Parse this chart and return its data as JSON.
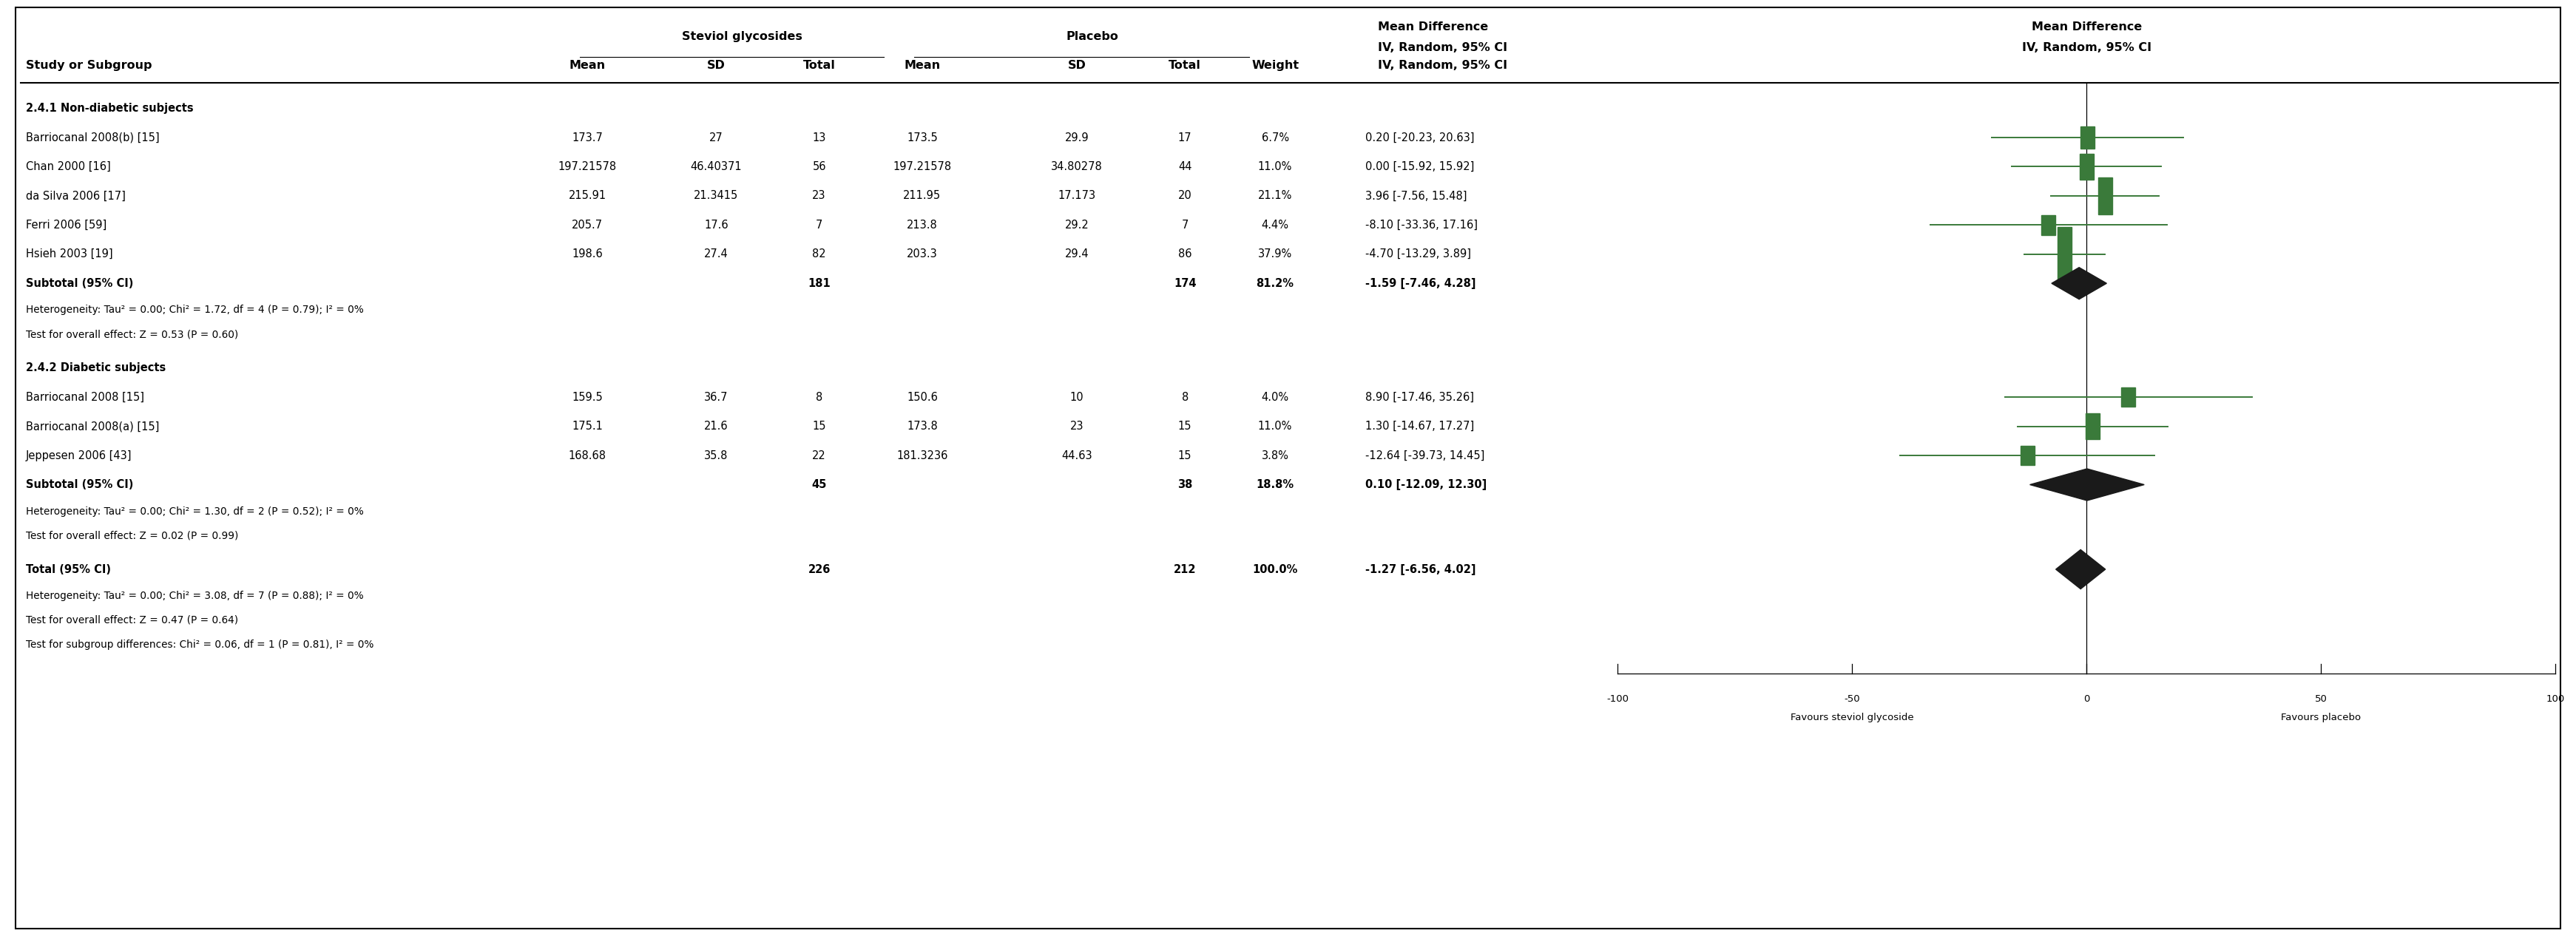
{
  "group1_header": "Steviol glycosides",
  "group2_header": "Placebo",
  "md_header": "Mean Difference",
  "md_subheader": "IV, Random, 95% CI",
  "subgroup1_label": "2.4.1 Non-diabetic subjects",
  "subgroup1_studies": [
    {
      "name": "Barriocanal 2008(b) [15]",
      "mean1": "173.7",
      "sd1": "27",
      "n1": "13",
      "mean2": "173.5",
      "sd2": "29.9",
      "n2": "17",
      "weight": "6.7%",
      "md": 0.2,
      "ci_lo": -20.23,
      "ci_hi": 20.63
    },
    {
      "name": "Chan 2000 [16]",
      "mean1": "197.21578",
      "sd1": "46.40371",
      "n1": "56",
      "mean2": "197.21578",
      "sd2": "34.80278",
      "n2": "44",
      "weight": "11.0%",
      "md": 0.0,
      "ci_lo": -15.92,
      "ci_hi": 15.92
    },
    {
      "name": "da Silva 2006 [17]",
      "mean1": "215.91",
      "sd1": "21.3415",
      "n1": "23",
      "mean2": "211.95",
      "sd2": "17.173",
      "n2": "20",
      "weight": "21.1%",
      "md": 3.96,
      "ci_lo": -7.56,
      "ci_hi": 15.48
    },
    {
      "name": "Ferri 2006 [59]",
      "mean1": "205.7",
      "sd1": "17.6",
      "n1": "7",
      "mean2": "213.8",
      "sd2": "29.2",
      "n2": "7",
      "weight": "4.4%",
      "md": -8.1,
      "ci_lo": -33.36,
      "ci_hi": 17.16
    },
    {
      "name": "Hsieh 2003 [19]",
      "mean1": "198.6",
      "sd1": "27.4",
      "n1": "82",
      "mean2": "203.3",
      "sd2": "29.4",
      "n2": "86",
      "weight": "37.9%",
      "md": -4.7,
      "ci_lo": -13.29,
      "ci_hi": 3.89
    }
  ],
  "subgroup1_subtotal": {
    "n1": "181",
    "n2": "174",
    "weight": "81.2%",
    "md": -1.59,
    "ci_lo": -7.46,
    "ci_hi": 4.28
  },
  "subgroup1_heterogeneity": "Heterogeneity: Tau² = 0.00; Chi² = 1.72, df = 4 (P = 0.79); I² = 0%",
  "subgroup1_effect": "Test for overall effect: Z = 0.53 (P = 0.60)",
  "subgroup2_label": "2.4.2 Diabetic subjects",
  "subgroup2_studies": [
    {
      "name": "Barriocanal 2008 [15]",
      "mean1": "159.5",
      "sd1": "36.7",
      "n1": "8",
      "mean2": "150.6",
      "sd2": "10",
      "n2": "8",
      "weight": "4.0%",
      "md": 8.9,
      "ci_lo": -17.46,
      "ci_hi": 35.26
    },
    {
      "name": "Barriocanal 2008(a) [15]",
      "mean1": "175.1",
      "sd1": "21.6",
      "n1": "15",
      "mean2": "173.8",
      "sd2": "23",
      "n2": "15",
      "weight": "11.0%",
      "md": 1.3,
      "ci_lo": -14.67,
      "ci_hi": 17.27
    },
    {
      "name": "Jeppesen 2006 [43]",
      "mean1": "168.68",
      "sd1": "35.8",
      "n1": "22",
      "mean2": "181.3236",
      "sd2": "44.63",
      "n2": "15",
      "weight": "3.8%",
      "md": -12.64,
      "ci_lo": -39.73,
      "ci_hi": 14.45
    }
  ],
  "subgroup2_subtotal": {
    "n1": "45",
    "n2": "38",
    "weight": "18.8%",
    "md": 0.1,
    "ci_lo": -12.09,
    "ci_hi": 12.3
  },
  "subgroup2_heterogeneity": "Heterogeneity: Tau² = 0.00; Chi² = 1.30, df = 2 (P = 0.52); I² = 0%",
  "subgroup2_effect": "Test for overall effect: Z = 0.02 (P = 0.99)",
  "total": {
    "n1": "226",
    "n2": "212",
    "weight": "100.0%",
    "md": -1.27,
    "ci_lo": -6.56,
    "ci_hi": 4.02
  },
  "total_heterogeneity": "Heterogeneity: Tau² = 0.00; Chi² = 3.08, df = 7 (P = 0.88); I² = 0%",
  "total_effect": "Test for overall effect: Z = 0.47 (P = 0.64)",
  "subgroup_diff": "Test for subgroup differences: Chi² = 0.06, df = 1 (P = 0.81), I² = 0%",
  "axis_min": -100,
  "axis_max": 100,
  "axis_label_left": "Favours steviol glycoside",
  "axis_label_right": "Favours placebo",
  "axis_ticks": [
    -100,
    -50,
    0,
    50,
    100
  ],
  "forest_color": "#3a7a3a",
  "diamond_color": "#1a1a1a",
  "bg_color": "#ffffff"
}
